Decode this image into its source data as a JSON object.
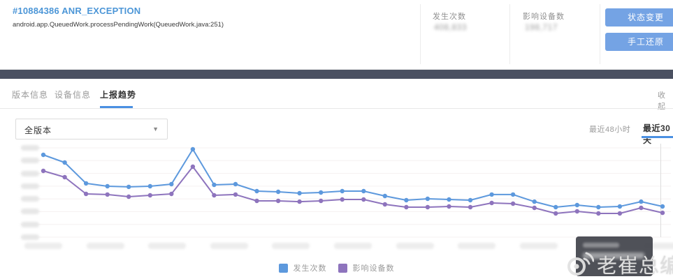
{
  "header": {
    "issue_id": "#10884386",
    "issue_type": "ANR_EXCEPTION",
    "stack_line": "android.app.QueuedWork.processPendingWork(QueuedWork.java:251)",
    "values_obscured": true,
    "stats": [
      {
        "label": "发生次数",
        "value": "408,833"
      },
      {
        "label": "影响设备数",
        "value": "198,717"
      }
    ],
    "buttons": [
      {
        "label": "状态变更"
      },
      {
        "label": "手工还原"
      }
    ]
  },
  "tabs": {
    "items": [
      {
        "label": "版本信息",
        "active": false
      },
      {
        "label": "设备信息",
        "active": false
      },
      {
        "label": "上报趋势",
        "active": true
      }
    ],
    "collapse_label": "收起"
  },
  "filters": {
    "version_select": {
      "value": "全版本"
    },
    "ranges": [
      {
        "label": "最近48小时",
        "active": false
      },
      {
        "label": "最近30天",
        "active": true
      }
    ]
  },
  "chart_data": {
    "type": "line",
    "title": "",
    "xlabel": "",
    "ylabel": "",
    "x_points": 30,
    "x_tick_count": 11,
    "y_tick_count": 8,
    "grid": true,
    "legend_position": "bottom-center",
    "ticks_blurred": true,
    "note": "Axis tick labels (dates on x, counts on y), header stat values and tooltip text are deliberately blurred/illegible in the source screenshot. Series values below are estimated in relative units: percent of plot height (0 = baseline, 100 = top gridline).",
    "ylim": [
      0,
      100
    ],
    "crosshair_at_last_point": true,
    "series": [
      {
        "name": "发生次数",
        "color": "#5d99dd",
        "values": [
          92.2,
          83.6,
          60.2,
          57.0,
          56.3,
          57.0,
          59.4,
          98.4,
          58.6,
          59.4,
          51.6,
          50.8,
          49.2,
          50.0,
          51.6,
          51.6,
          46.1,
          41.4,
          43.0,
          42.2,
          41.4,
          47.7,
          47.7,
          39.8,
          33.6,
          35.9,
          33.6,
          34.4,
          39.8,
          34.4
        ]
      },
      {
        "name": "影响设备数",
        "color": "#8e74bd",
        "values": [
          74.2,
          67.2,
          48.4,
          47.7,
          45.3,
          46.9,
          48.4,
          78.9,
          46.9,
          47.7,
          40.6,
          40.6,
          39.8,
          40.6,
          42.2,
          42.2,
          36.7,
          33.6,
          33.6,
          34.4,
          33.6,
          38.3,
          37.5,
          32.8,
          26.6,
          28.9,
          26.6,
          26.6,
          32.8,
          27.3
        ]
      }
    ]
  },
  "tooltip": {
    "visible": true,
    "content_blurred": true
  },
  "watermark": {
    "text": "老崔总编",
    "icon": "weibo-eye-logo"
  },
  "colors": {
    "accent_blue": "#4a90e2",
    "title_blue": "#4c96d7",
    "button_blue": "#74a3e4",
    "dark_bar": "#4a5061",
    "line_blue": "#5d99dd",
    "line_purple": "#8e74bd",
    "tooltip_bg": "#42444b",
    "gridline": "#f5f0f0"
  }
}
